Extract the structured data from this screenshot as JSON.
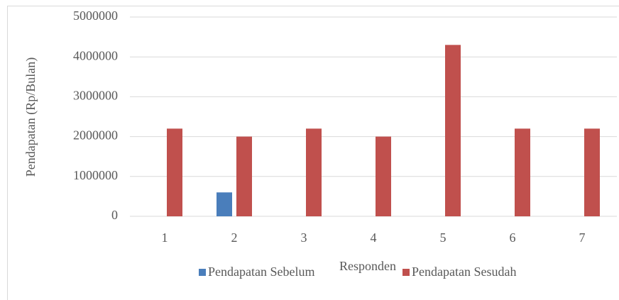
{
  "chart_data": {
    "type": "bar",
    "categories": [
      "1",
      "2",
      "3",
      "4",
      "5",
      "6",
      "7"
    ],
    "series": [
      {
        "name": "Pendapatan Sebelum",
        "color": "#4a7ebb",
        "values": [
          0,
          600000,
          0,
          0,
          0,
          0,
          0
        ]
      },
      {
        "name": "Pendapatan Sesudah",
        "color": "#c0504d",
        "values": [
          2200000,
          2000000,
          2200000,
          2000000,
          4300000,
          2200000,
          2200000
        ]
      }
    ],
    "xlabel": "Responden",
    "ylabel": "Pendapatan (Rp/Bulan)",
    "ylim": [
      0,
      5000000
    ],
    "yticks": [
      0,
      1000000,
      2000000,
      3000000,
      4000000,
      5000000
    ],
    "grid": true,
    "legend": "bottom"
  }
}
